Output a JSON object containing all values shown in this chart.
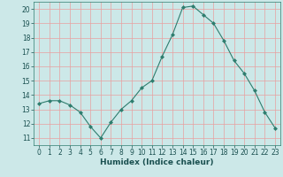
{
  "x": [
    0,
    1,
    2,
    3,
    4,
    5,
    6,
    7,
    8,
    9,
    10,
    11,
    12,
    13,
    14,
    15,
    16,
    17,
    18,
    19,
    20,
    21,
    22,
    23
  ],
  "y": [
    13.4,
    13.6,
    13.6,
    13.3,
    12.8,
    11.8,
    11.0,
    12.1,
    13.0,
    13.6,
    14.5,
    15.0,
    16.7,
    18.2,
    20.1,
    20.2,
    19.6,
    19.0,
    17.8,
    16.4,
    15.5,
    14.3,
    12.8,
    11.7
  ],
  "line_color": "#2e7d6e",
  "marker": "D",
  "marker_size": 2.0,
  "xlabel": "Humidex (Indice chaleur)",
  "xlim": [
    -0.5,
    23.5
  ],
  "ylim": [
    10.5,
    20.5
  ],
  "yticks": [
    11,
    12,
    13,
    14,
    15,
    16,
    17,
    18,
    19,
    20
  ],
  "xticks": [
    0,
    1,
    2,
    3,
    4,
    5,
    6,
    7,
    8,
    9,
    10,
    11,
    12,
    13,
    14,
    15,
    16,
    17,
    18,
    19,
    20,
    21,
    22,
    23
  ],
  "bg_color": "#cce8e8",
  "plot_bg_color": "#cce8e8",
  "grid_color": "#e8a0a0",
  "line_width": 0.8,
  "tick_font_size": 5.5,
  "xlabel_font_size": 6.5,
  "font_color": "#1a5050"
}
